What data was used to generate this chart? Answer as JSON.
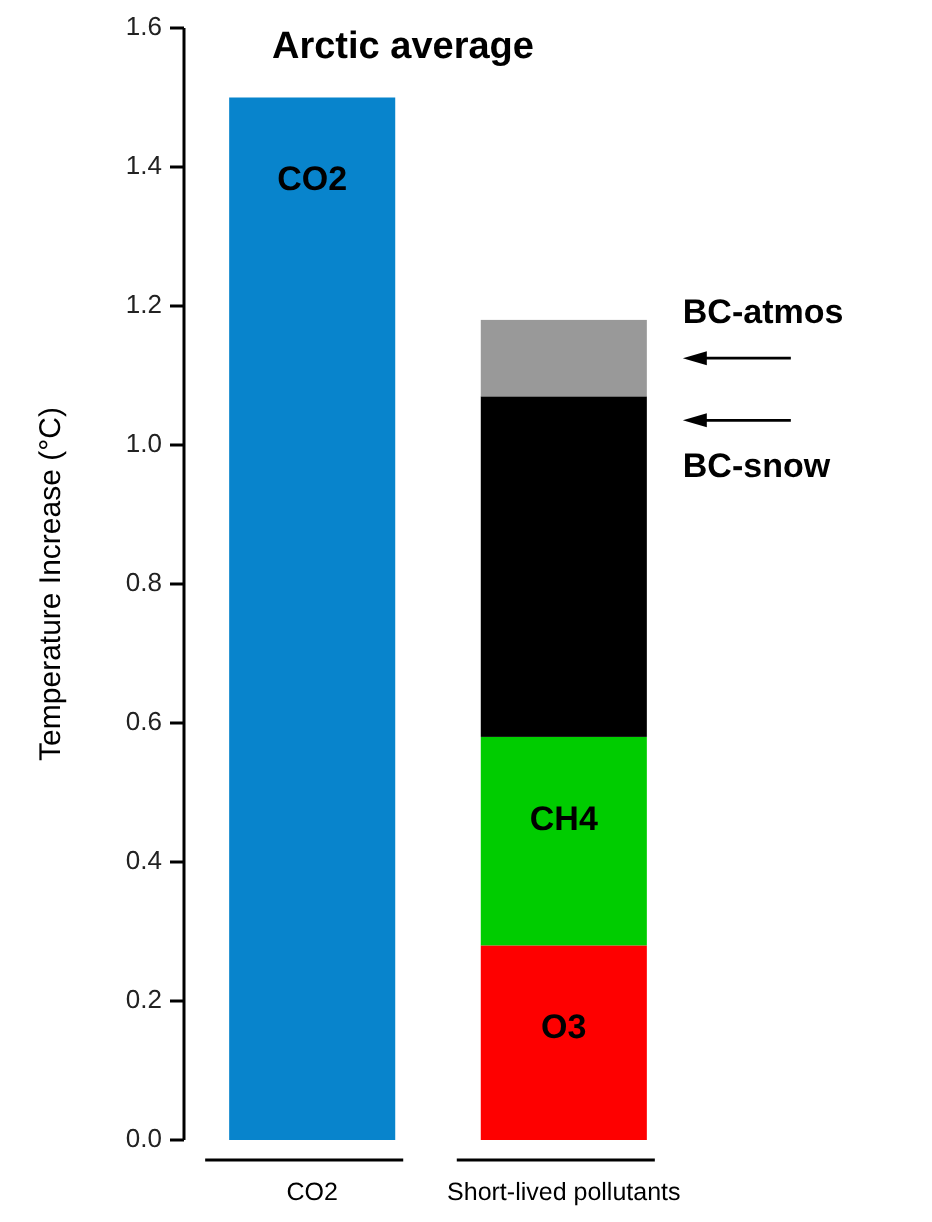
{
  "chart_data": {
    "type": "bar",
    "title": "Arctic average",
    "ylabel": "Temperature Increase (°C)",
    "categories": [
      "CO2",
      "Short-lived pollutants"
    ],
    "stacked": true,
    "grid": false,
    "ylim": [
      0,
      1.6
    ],
    "yticks": [
      {
        "value": 0,
        "label": "0.0"
      },
      {
        "value": 0.2,
        "label": "0.2"
      },
      {
        "value": 0.4,
        "label": "0.4"
      },
      {
        "value": 0.6,
        "label": "0.6"
      },
      {
        "value": 0.8,
        "label": "0.8"
      },
      {
        "value": 1,
        "label": "1.0"
      },
      {
        "value": 1.2,
        "label": "1.2"
      },
      {
        "value": 1.4,
        "label": "1.4"
      },
      {
        "value": 1.6,
        "label": "1.6"
      }
    ],
    "series": [
      {
        "name": "CO2",
        "color": "#0884cc",
        "values": [
          1.5,
          null
        ]
      },
      {
        "name": "O3",
        "color": "#fe0000",
        "values": [
          null,
          0.28
        ]
      },
      {
        "name": "CH4",
        "color": "#00cc00",
        "values": [
          null,
          0.3
        ]
      },
      {
        "name": "BC-snow",
        "color": "#000000",
        "values": [
          null,
          0.49
        ]
      },
      {
        "name": "BC-atmos",
        "color": "#999999",
        "values": [
          null,
          0.11
        ]
      }
    ]
  }
}
